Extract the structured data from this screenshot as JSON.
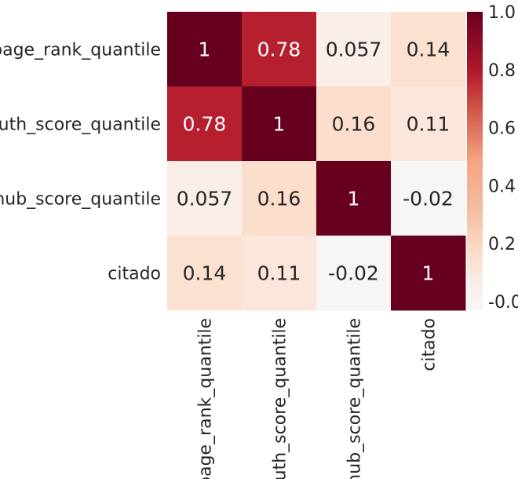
{
  "chart_data": {
    "type": "heatmap",
    "title": "",
    "xlabel": "",
    "ylabel": "",
    "x_categories": [
      "page_rank_quantile",
      "auth_score_quantile",
      "hub_score_quantile",
      "citado"
    ],
    "y_categories": [
      "page_rank_quantile",
      "auth_score_quantile",
      "hub_score_quantile",
      "citado"
    ],
    "values": [
      [
        1,
        0.78,
        0.057,
        0.14
      ],
      [
        0.78,
        1,
        0.16,
        0.11
      ],
      [
        0.057,
        0.16,
        1,
        -0.02
      ],
      [
        0.14,
        0.11,
        -0.02,
        1
      ]
    ],
    "cell_labels": [
      [
        "1",
        "0.78",
        "0.057",
        "0.14"
      ],
      [
        "0.78",
        "1",
        "0.16",
        "0.11"
      ],
      [
        "0.057",
        "0.16",
        "1",
        "-0.02"
      ],
      [
        "0.14",
        "0.11",
        "-0.02",
        "1"
      ]
    ],
    "colorbar": {
      "range": [
        -0.03,
        1.0
      ],
      "ticks": [
        0.0,
        0.2,
        0.4,
        0.6,
        0.8,
        1.0
      ],
      "tick_labels": [
        "-0.0",
        "0.2",
        "0.4",
        "0.6",
        "0.8",
        "1.0"
      ],
      "colormap": "RdBu_r (white-to-red half)"
    },
    "annot_text_colors": {
      "on_dark": "#ffffff",
      "on_light": "#262626"
    },
    "grid": false,
    "legend": "colorbar right"
  }
}
